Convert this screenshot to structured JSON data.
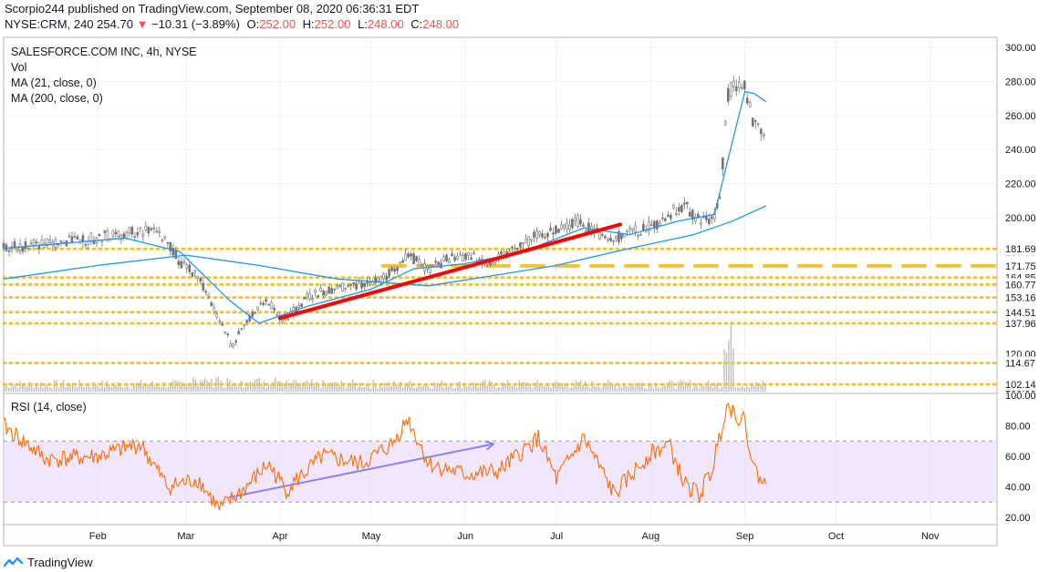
{
  "header": {
    "published_line": "Scorpio244 published on TradingView.com, September 08, 2020 06:36:31 EDT",
    "symbol_line": "NYSE:CRM, 240",
    "last_price": "254.70",
    "change": "−10.31 (−3.89%)",
    "ohlc": [
      {
        "label": "O:",
        "value": "252.00"
      },
      {
        "label": "H:",
        "value": "252.00"
      },
      {
        "label": "L:",
        "value": "248.00"
      },
      {
        "label": "C:",
        "value": "248.00"
      }
    ]
  },
  "legend": {
    "title": "SALESFORCE.COM INC, 4h, NYSE",
    "vol": "Vol",
    "ma21": "MA (21, close, 0)",
    "ma200": "MA (200, close, 0)",
    "rsi": "RSI (14, close)"
  },
  "footer": {
    "brand": "TradingView"
  },
  "colors": {
    "candle": "#737375",
    "ma": "#2196f3",
    "level": "#f2c230",
    "trend": "#ff0000",
    "rsi": "#ff6d00",
    "rsi_band": "#e8d7fb",
    "rsi_trend": "#0000cc",
    "grid": "#eef0f3"
  },
  "chart_data": [
    {
      "type": "line",
      "title": "SALESFORCE.COM INC, 4h, NYSE",
      "series_label": "Price (candlesticks)",
      "x_ticks": [
        "Feb",
        "Mar",
        "Apr",
        "May",
        "Jun",
        "Jul",
        "Aug",
        "Sep",
        "Oct",
        "Nov"
      ],
      "y_ticks": [
        "100.00",
        "120.00",
        "140.00",
        "160.00",
        "180.00",
        "200.00",
        "220.00",
        "240.00",
        "260.00",
        "280.00",
        "300.00"
      ],
      "y_range": [
        100,
        300
      ],
      "x_range": [
        "2020-01-01",
        "2020-11-23"
      ],
      "price_path": [
        [
          "2020-01-01",
          182
        ],
        [
          "2020-01-10",
          184
        ],
        [
          "2020-01-20",
          186
        ],
        [
          "2020-02-01",
          188
        ],
        [
          "2020-02-10",
          191
        ],
        [
          "2020-02-20",
          193
        ],
        [
          "2020-02-24",
          186
        ],
        [
          "2020-02-28",
          174
        ],
        [
          "2020-03-05",
          165
        ],
        [
          "2020-03-09",
          152
        ],
        [
          "2020-03-12",
          140
        ],
        [
          "2020-03-16",
          125
        ],
        [
          "2020-03-20",
          136
        ],
        [
          "2020-03-24",
          146
        ],
        [
          "2020-03-27",
          152
        ],
        [
          "2020-04-01",
          142
        ],
        [
          "2020-04-03",
          140
        ],
        [
          "2020-04-09",
          152
        ],
        [
          "2020-04-14",
          156
        ],
        [
          "2020-04-20",
          158
        ],
        [
          "2020-04-24",
          160
        ],
        [
          "2020-05-01",
          162
        ],
        [
          "2020-05-08",
          168
        ],
        [
          "2020-05-13",
          178
        ],
        [
          "2020-05-20",
          170
        ],
        [
          "2020-05-27",
          176
        ],
        [
          "2020-06-03",
          178
        ],
        [
          "2020-06-05",
          174
        ],
        [
          "2020-06-12",
          176
        ],
        [
          "2020-06-18",
          182
        ],
        [
          "2020-06-25",
          190
        ],
        [
          "2020-06-30",
          193
        ],
        [
          "2020-07-08",
          198
        ],
        [
          "2020-07-15",
          190
        ],
        [
          "2020-07-20",
          188
        ],
        [
          "2020-07-27",
          192
        ],
        [
          "2020-08-03",
          196
        ],
        [
          "2020-08-07",
          202
        ],
        [
          "2020-08-12",
          208
        ],
        [
          "2020-08-17",
          198
        ],
        [
          "2020-08-21",
          198
        ],
        [
          "2020-08-24",
          212
        ],
        [
          "2020-08-26",
          270
        ],
        [
          "2020-08-28",
          278
        ],
        [
          "2020-09-01",
          278
        ],
        [
          "2020-09-03",
          262
        ],
        [
          "2020-09-04",
          255
        ],
        [
          "2020-09-08",
          248
        ]
      ],
      "ma21_path": [
        [
          "2020-01-01",
          182
        ],
        [
          "2020-02-10",
          188
        ],
        [
          "2020-02-28",
          180
        ],
        [
          "2020-03-15",
          152
        ],
        [
          "2020-03-25",
          138
        ],
        [
          "2020-04-10",
          148
        ],
        [
          "2020-05-01",
          158
        ],
        [
          "2020-05-15",
          170
        ],
        [
          "2020-06-01",
          173
        ],
        [
          "2020-06-20",
          180
        ],
        [
          "2020-07-10",
          194
        ],
        [
          "2020-07-25",
          190
        ],
        [
          "2020-08-10",
          198
        ],
        [
          "2020-08-22",
          202
        ],
        [
          "2020-08-27",
          238
        ],
        [
          "2020-09-01",
          274
        ],
        [
          "2020-09-04",
          273
        ],
        [
          "2020-09-08",
          268
        ]
      ],
      "ma200_path": [
        [
          "2020-01-01",
          164
        ],
        [
          "2020-02-01",
          172
        ],
        [
          "2020-03-01",
          178
        ],
        [
          "2020-03-25",
          172
        ],
        [
          "2020-04-20",
          164
        ],
        [
          "2020-05-20",
          160
        ],
        [
          "2020-06-10",
          166
        ],
        [
          "2020-07-01",
          172
        ],
        [
          "2020-07-25",
          182
        ],
        [
          "2020-08-15",
          190
        ],
        [
          "2020-08-28",
          198
        ],
        [
          "2020-09-08",
          207
        ]
      ],
      "horizontal_levels": [
        {
          "value": 181.69,
          "label": "181.69",
          "style": "dotted"
        },
        {
          "value": 171.75,
          "label": "171.75",
          "style": "dashed"
        },
        {
          "value": 164.85,
          "label": "164.85",
          "style": "dotted"
        },
        {
          "value": 160.77,
          "label": "160.77",
          "style": "dotted"
        },
        {
          "value": 153.16,
          "label": "153.16",
          "style": "dotted"
        },
        {
          "value": 144.51,
          "label": "144.51",
          "style": "dotted"
        },
        {
          "value": 137.96,
          "label": "137.96",
          "style": "dotted"
        },
        {
          "value": 114.67,
          "label": "114.67",
          "style": "dotted"
        },
        {
          "value": 102.14,
          "label": "102.14",
          "style": "dotted"
        }
      ],
      "trendline": [
        [
          "2020-04-01",
          141
        ],
        [
          "2020-07-22",
          196
        ]
      ]
    },
    {
      "type": "line",
      "title": "RSI (14, close)",
      "y_ticks": [
        "20.00",
        "40.00",
        "60.00",
        "80.00",
        "100.00"
      ],
      "y_range": [
        20,
        100
      ],
      "band": [
        30,
        70
      ],
      "rsi_path": [
        [
          "2020-01-01",
          80
        ],
        [
          "2020-01-15",
          58
        ],
        [
          "2020-02-01",
          60
        ],
        [
          "2020-02-15",
          68
        ],
        [
          "2020-02-24",
          40
        ],
        [
          "2020-03-05",
          45
        ],
        [
          "2020-03-12",
          25
        ],
        [
          "2020-03-20",
          38
        ],
        [
          "2020-03-28",
          55
        ],
        [
          "2020-04-03",
          38
        ],
        [
          "2020-04-15",
          60
        ],
        [
          "2020-04-28",
          55
        ],
        [
          "2020-05-08",
          68
        ],
        [
          "2020-05-13",
          85
        ],
        [
          "2020-05-20",
          55
        ],
        [
          "2020-06-01",
          48
        ],
        [
          "2020-06-12",
          50
        ],
        [
          "2020-06-25",
          72
        ],
        [
          "2020-07-01",
          45
        ],
        [
          "2020-07-10",
          72
        ],
        [
          "2020-07-20",
          35
        ],
        [
          "2020-08-01",
          62
        ],
        [
          "2020-08-07",
          68
        ],
        [
          "2020-08-12",
          42
        ],
        [
          "2020-08-17",
          35
        ],
        [
          "2020-08-21",
          50
        ],
        [
          "2020-08-26",
          94
        ],
        [
          "2020-09-01",
          82
        ],
        [
          "2020-09-04",
          52
        ],
        [
          "2020-09-08",
          40
        ]
      ],
      "trendline": [
        [
          "2020-03-15",
          33
        ],
        [
          "2020-06-10",
          68
        ]
      ]
    }
  ]
}
